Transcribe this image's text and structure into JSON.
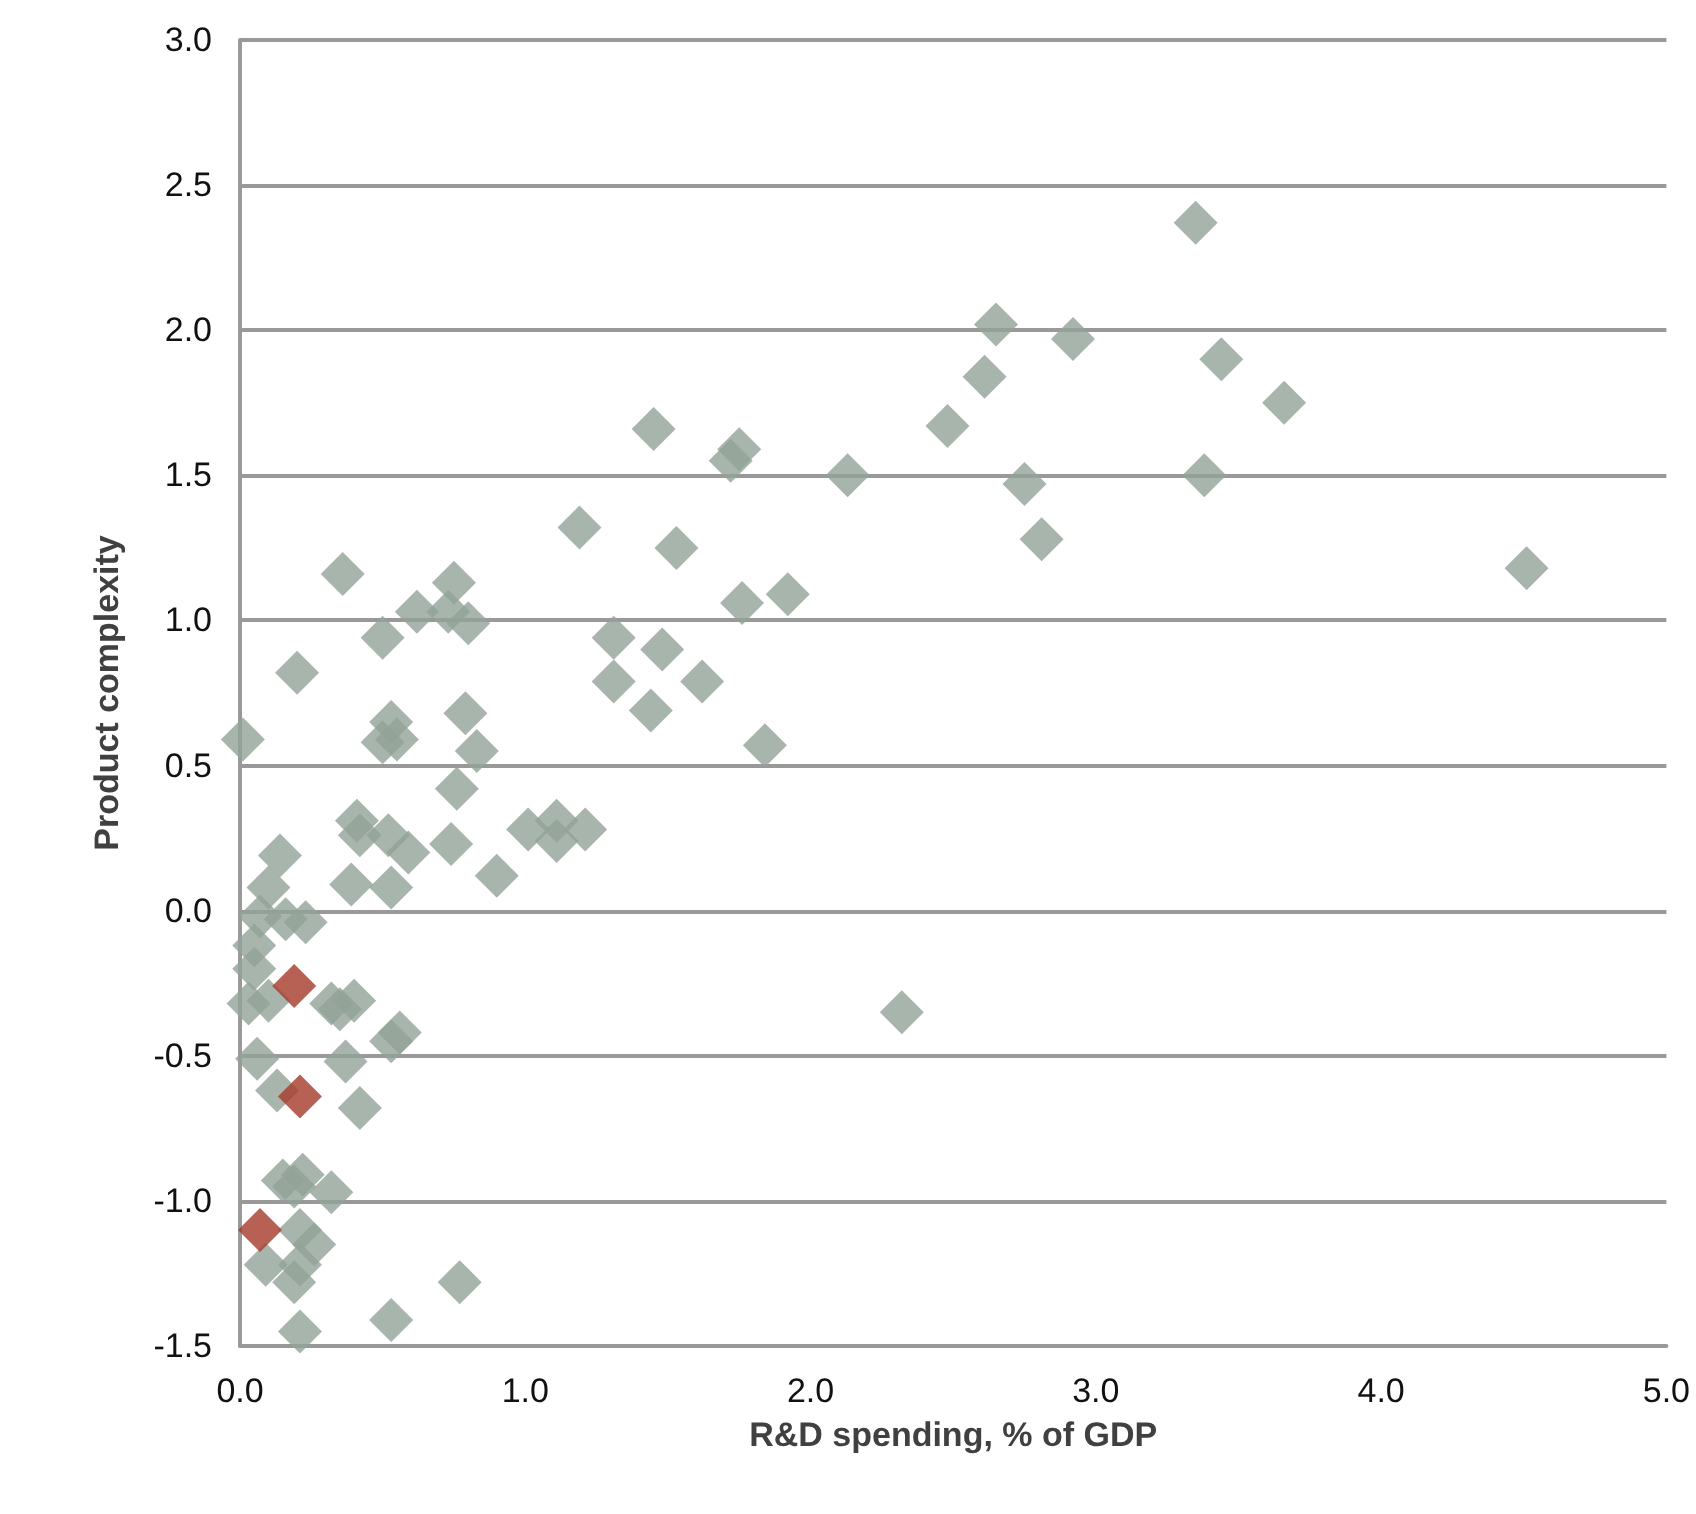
{
  "chart_data": {
    "type": "scatter",
    "xlabel": "R&D spending, % of GDP",
    "ylabel": "Product complexity",
    "marker": "diamond",
    "grid": "y",
    "xlim": [
      0,
      5
    ],
    "xticks": [
      {
        "value": 0,
        "label": "0.0"
      },
      {
        "value": 1,
        "label": "1.0"
      },
      {
        "value": 2,
        "label": "2.0"
      },
      {
        "value": 3,
        "label": "3.0"
      },
      {
        "value": 4,
        "label": "4.0"
      },
      {
        "value": 5,
        "label": "5.0"
      }
    ],
    "ylim": [
      -1.5,
      3
    ],
    "yticks": [
      {
        "value": -1.5,
        "label": "-1.5"
      },
      {
        "value": -1,
        "label": "-1.0"
      },
      {
        "value": -0.5,
        "label": "-0.5"
      },
      {
        "value": 0,
        "label": "0.0"
      },
      {
        "value": 0.5,
        "label": "0.5"
      },
      {
        "value": 1,
        "label": "1.0"
      },
      {
        "value": 1.5,
        "label": "1.5"
      },
      {
        "value": 2,
        "label": "2.0"
      },
      {
        "value": 2.5,
        "label": "2.5"
      },
      {
        "value": 3,
        "label": "3.0"
      }
    ],
    "series": [
      {
        "color": "#92a397",
        "x": [
          3.35,
          2.65,
          2.92,
          2.61,
          2.48,
          1.45,
          1.75,
          1.72,
          2.13,
          2.75,
          2.81,
          1.19,
          1.53,
          1.76,
          1.92,
          1.31,
          1.48,
          1.31,
          1.62,
          1.44,
          1.84,
          2.32,
          3.44,
          3.66,
          3.38,
          4.51,
          0.36,
          0.75,
          0.62,
          0.73,
          0.8,
          0.5,
          0.2,
          0.79,
          0.53,
          0.5,
          0.55,
          0.01,
          0.83,
          0.76,
          0.41,
          0.42,
          0.52,
          0.59,
          0.74,
          1.01,
          1.11,
          1.11,
          1.21,
          0.9,
          0.14,
          0.39,
          0.53,
          0.1,
          0.23,
          0.16,
          0.07,
          0.05,
          0.05,
          0.03,
          0.1,
          0.35,
          0.4,
          0.32,
          0.53,
          0.56,
          0.06,
          0.37,
          0.13,
          0.42,
          0.15,
          0.22,
          0.32,
          0.19,
          0.21,
          0.26,
          0.09,
          0.21,
          0.19,
          0.77,
          0.21,
          0.53
        ],
        "values": [
          2.37,
          2.02,
          1.97,
          1.84,
          1.67,
          1.66,
          1.59,
          1.55,
          1.5,
          1.47,
          1.28,
          1.32,
          1.25,
          1.06,
          1.09,
          0.94,
          0.9,
          0.79,
          0.79,
          0.69,
          0.57,
          -0.35,
          1.9,
          1.75,
          1.5,
          1.18,
          1.16,
          1.13,
          1.03,
          1.03,
          0.99,
          0.94,
          0.82,
          0.68,
          0.65,
          0.58,
          0.59,
          0.59,
          0.55,
          0.42,
          0.31,
          0.26,
          0.26,
          0.2,
          0.23,
          0.28,
          0.31,
          0.24,
          0.28,
          0.12,
          0.19,
          0.09,
          0.08,
          0.08,
          -0.04,
          -0.03,
          -0.02,
          -0.12,
          -0.2,
          -0.32,
          -0.31,
          -0.34,
          -0.31,
          -0.32,
          -0.45,
          -0.42,
          -0.51,
          -0.52,
          -0.62,
          -0.68,
          -0.93,
          -0.91,
          -0.97,
          -0.95,
          -1.1,
          -1.15,
          -1.22,
          -1.22,
          -1.28,
          -1.28,
          -1.45,
          -1.41
        ]
      },
      {
        "color": "#a5392a",
        "x": [
          0.19,
          0.21,
          0.07
        ],
        "values": [
          -0.26,
          -0.64,
          -1.1
        ]
      }
    ]
  }
}
